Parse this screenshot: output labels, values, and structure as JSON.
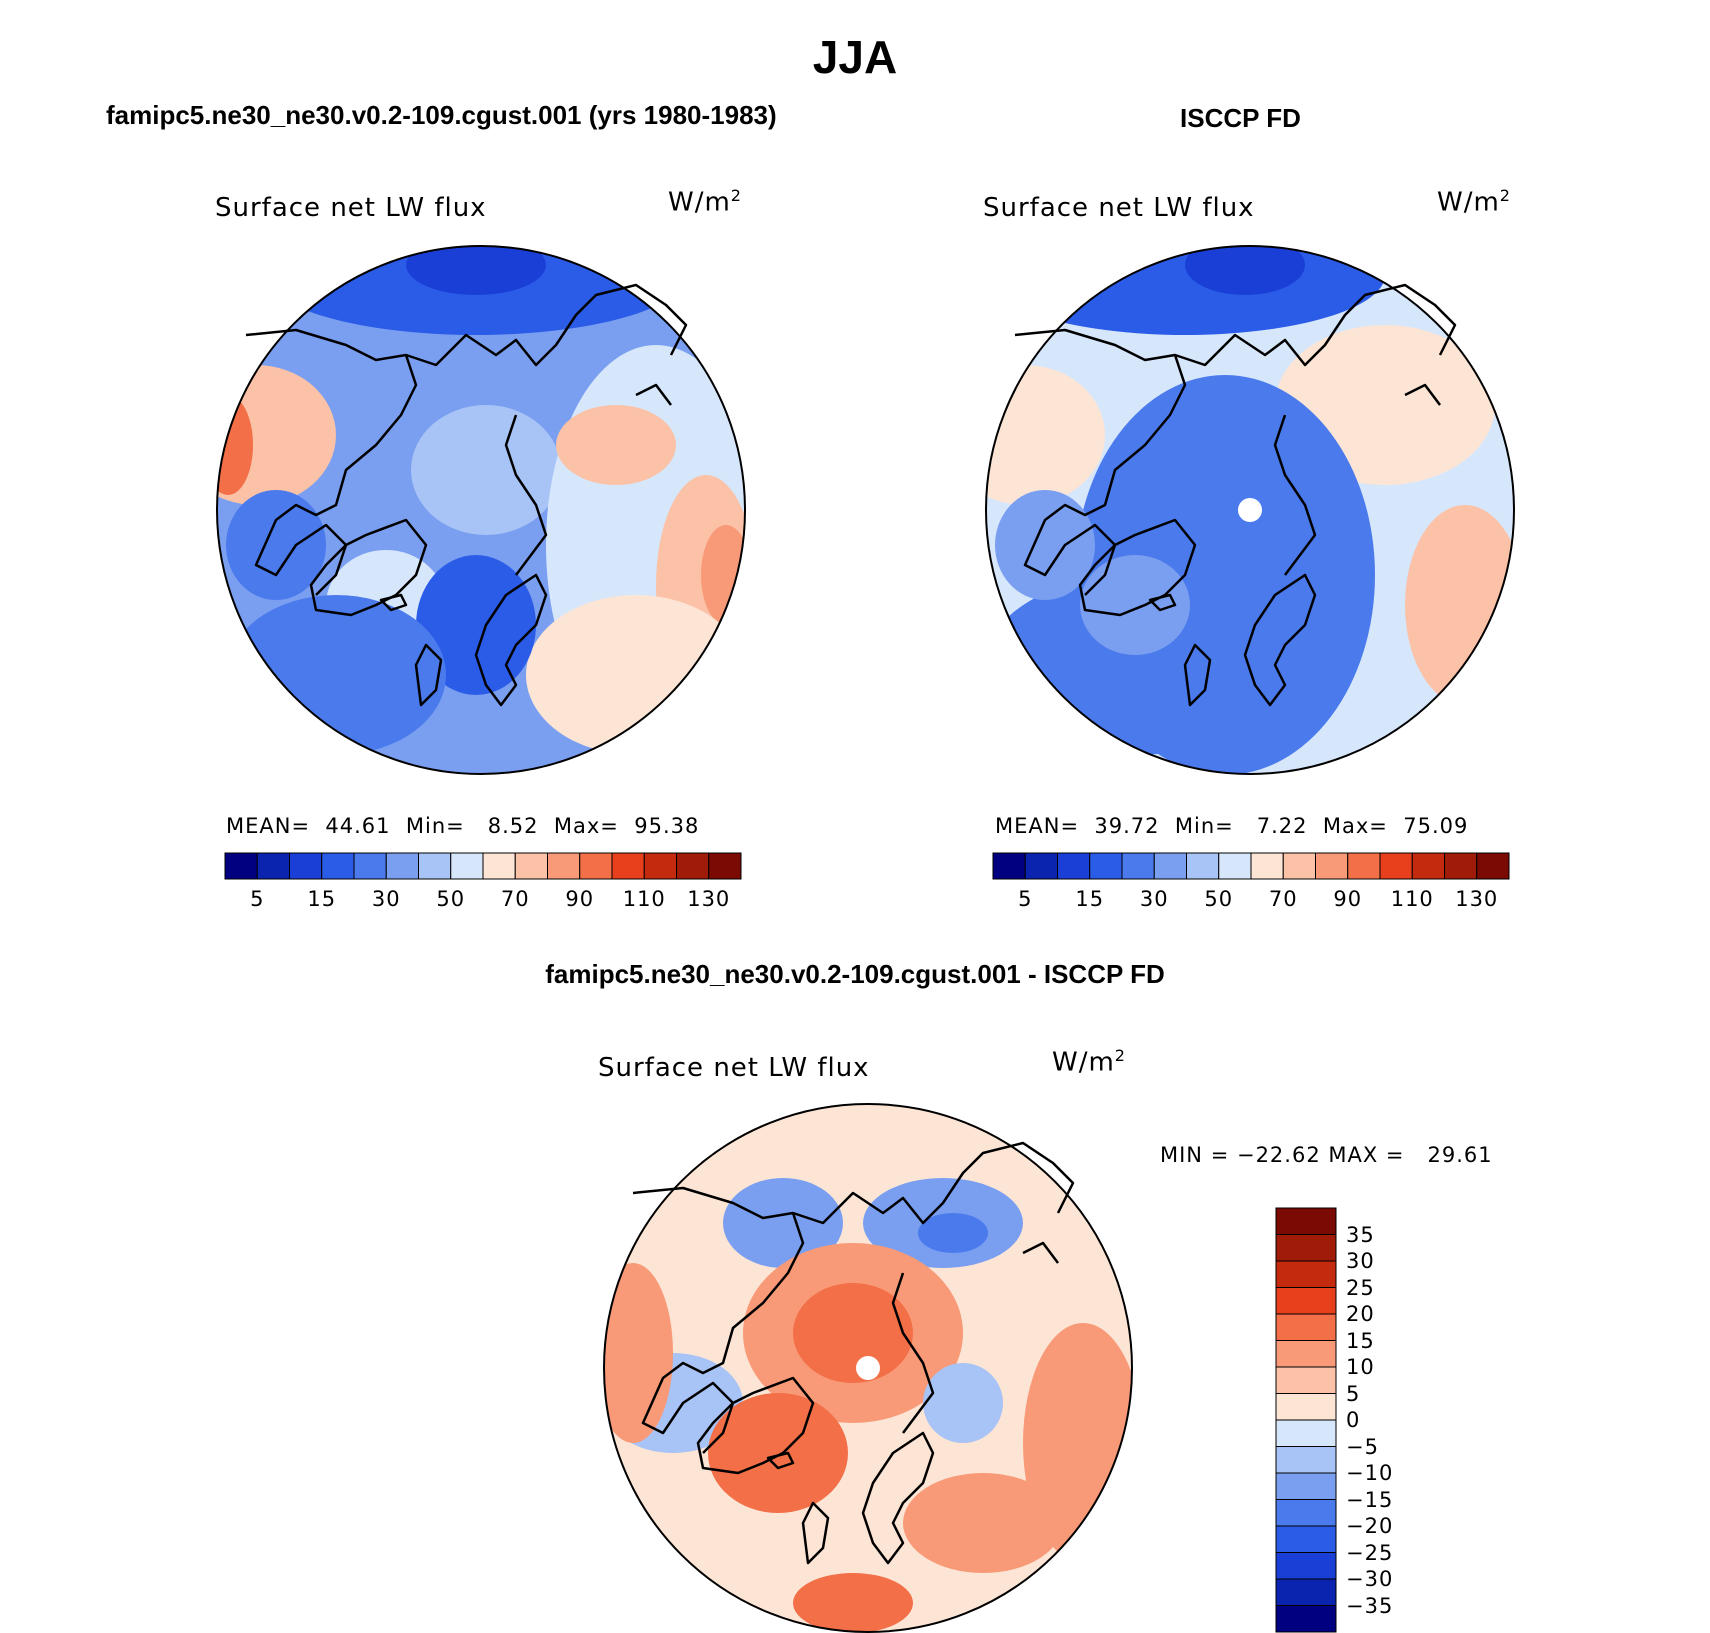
{
  "title": "JJA",
  "colors": {
    "abs_scale": [
      "#000080",
      "#0a24b0",
      "#1a3fd6",
      "#2b5ce8",
      "#4a7aec",
      "#7a9ff0",
      "#a8c3f5",
      "#d6e6fb",
      "#fde5d6",
      "#fbc2a8",
      "#f89a77",
      "#f26f47",
      "#e8401c",
      "#c42a0e",
      "#a01c08",
      "#7a0a03"
    ],
    "diff_scale": [
      "#000080",
      "#0a24b0",
      "#1a3fd6",
      "#2b5ce8",
      "#4a7aec",
      "#7a9ff0",
      "#a8c3f5",
      "#d6e6fb",
      "#fde5d6",
      "#fbc2a8",
      "#f89a77",
      "#f26f47",
      "#e8401c",
      "#c42a0e",
      "#a01c08",
      "#7a0a03"
    ]
  },
  "panels": {
    "model": {
      "title": "famipc5.ne30_ne30.v0.2-109.cgust.001 (yrs 1980-1983)",
      "variable": "Surface net LW flux",
      "units": "W/m",
      "units_sup": "2",
      "stats": "MEAN=  44.61  Min=   8.52  Max=  95.38"
    },
    "obs": {
      "title": "ISCCP FD",
      "variable": "Surface net LW flux",
      "units": "W/m",
      "units_sup": "2",
      "stats": "MEAN=  39.72  Min=   7.22  Max=  75.09"
    },
    "diff": {
      "title": "famipc5.ne30_ne30.v0.2-109.cgust.001 - ISCCP FD",
      "variable": "Surface net LW flux",
      "units": "W/m",
      "units_sup": "2",
      "stats": "MIN = −22.62 MAX =   29.61"
    }
  },
  "colorbar_abs_ticks": [
    "5",
    "15",
    "30",
    "50",
    "70",
    "90",
    "110",
    "130"
  ],
  "colorbar_diff_ticks": [
    "35",
    "30",
    "25",
    "20",
    "15",
    "10",
    "5",
    "0",
    "−5",
    "−10",
    "−15",
    "−20",
    "−25",
    "−30",
    "−35"
  ]
}
